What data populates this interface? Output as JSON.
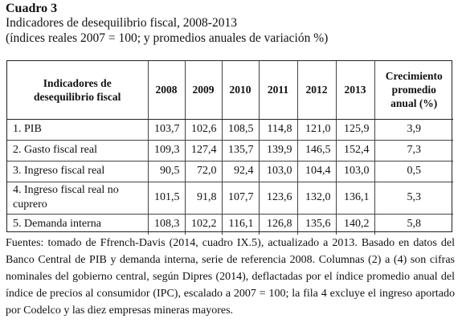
{
  "document": {
    "label": "Cuadro 3",
    "title": "Indicadores de desequilibrio fiscal, 2008-2013",
    "subtitle": "(índices reales 2007 = 100; y promedios anuales de variación %)"
  },
  "table": {
    "headers": {
      "indicator_line1": "Indicadores de",
      "indicator_line2": "desequilibrio fiscal",
      "y2008": "2008",
      "y2009": "2009",
      "y2010": "2010",
      "y2011": "2011",
      "y2012": "2012",
      "y2013": "2013",
      "growth_line1": "Crecimiento",
      "growth_line2": "promedio",
      "growth_line3": "anual (%)"
    },
    "rows": [
      {
        "label": "1. PIB",
        "v2008": "103,7",
        "v2009": "102,6",
        "v2010": "108,5",
        "v2011": "114,8",
        "v2012": "121,0",
        "v2013": "125,9",
        "growth": "3,9"
      },
      {
        "label": "2. Gasto fiscal real",
        "v2008": "109,3",
        "v2009": "127,4",
        "v2010": "135,7",
        "v2011": "139,9",
        "v2012": "146,5",
        "v2013": "152,4",
        "growth": "7,3"
      },
      {
        "label": "3. Ingreso fiscal real",
        "v2008": "90,5",
        "v2009": "72,0",
        "v2010": "92,4",
        "v2011": "103,0",
        "v2012": "104,4",
        "v2013": "103,0",
        "growth": "0,5"
      },
      {
        "label_line1": "4. Ingreso fiscal real no",
        "label_line2": "cuprero",
        "v2008": "101,5",
        "v2009": "91,8",
        "v2010": "107,7",
        "v2011": "123,6",
        "v2012": "132,0",
        "v2013": "136,1",
        "growth": "5,3"
      },
      {
        "label": "5. Demanda interna",
        "v2008": "108,3",
        "v2009": "102,2",
        "v2010": "116,1",
        "v2011": "126,8",
        "v2012": "135,6",
        "v2013": "140,2",
        "growth": "5,8"
      }
    ]
  },
  "source_note": "Fuentes: tomado de Ffrench-Davis (2014, cuadro IX.5), actualizado a 2013. Basado en datos del Banco Central de PIB y demanda interna, serie de referencia 2008. Columnas (2) a (4) son cifras nominales del gobierno central, según Dipres (2014), deflactadas por el índice promedio anual del índice de precios al consumidor (IPC), escalado a 2007 = 100; la fila 4 excluye el ingreso aportado por Codelco y las diez empresas mineras mayores."
}
